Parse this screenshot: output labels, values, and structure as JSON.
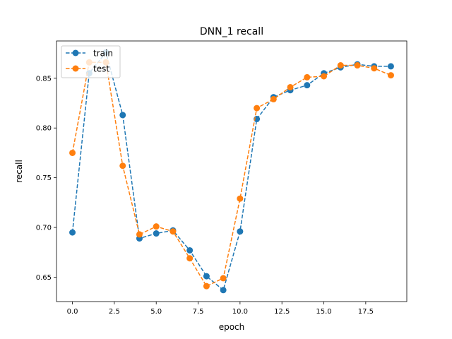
{
  "chart_data": {
    "type": "line",
    "title": "DNN_1 recall",
    "xlabel": "epoch",
    "ylabel": "recall",
    "xlim": [
      -0.95,
      19.95
    ],
    "ylim": [
      0.6255,
      0.8875
    ],
    "xticks": [
      0.0,
      2.5,
      5.0,
      7.5,
      10.0,
      12.5,
      15.0,
      17.5
    ],
    "xtick_labels": [
      "0.0",
      "2.5",
      "5.0",
      "7.5",
      "10.0",
      "12.5",
      "15.0",
      "17.5"
    ],
    "yticks": [
      0.65,
      0.7,
      0.75,
      0.8,
      0.85
    ],
    "ytick_labels": [
      "0.65",
      "0.70",
      "0.75",
      "0.80",
      "0.85"
    ],
    "grid": false,
    "legend_position": "upper-left",
    "x": [
      0,
      1,
      2,
      3,
      4,
      5,
      6,
      7,
      8,
      9,
      10,
      11,
      12,
      13,
      14,
      15,
      16,
      17,
      18,
      19
    ],
    "series": [
      {
        "name": "train",
        "color": "#1f77b4",
        "line_style": "dashed",
        "marker": "circle",
        "values": [
          0.695,
          0.855,
          0.876,
          0.813,
          0.689,
          0.694,
          0.697,
          0.677,
          0.651,
          0.637,
          0.696,
          0.809,
          0.831,
          0.838,
          0.843,
          0.855,
          0.861,
          0.864,
          0.862,
          0.862
        ]
      },
      {
        "name": "test",
        "color": "#ff7f0e",
        "line_style": "dashed",
        "marker": "circle",
        "values": [
          0.775,
          0.866,
          0.866,
          0.762,
          0.693,
          0.701,
          0.696,
          0.669,
          0.641,
          0.649,
          0.729,
          0.82,
          0.829,
          0.841,
          0.851,
          0.852,
          0.863,
          0.863,
          0.86,
          0.853
        ]
      }
    ]
  }
}
